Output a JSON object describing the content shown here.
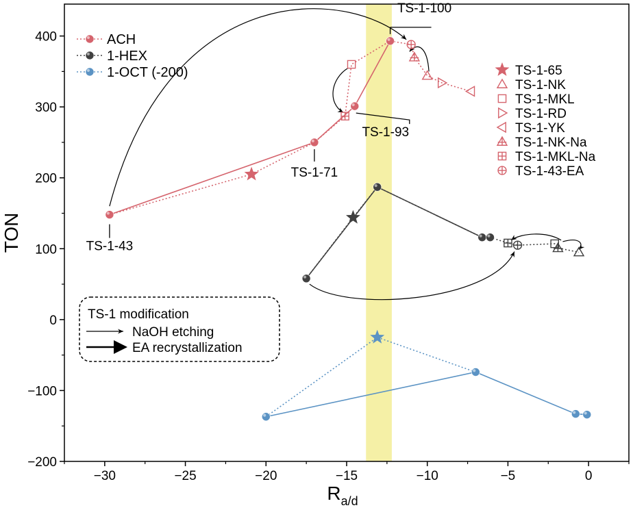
{
  "chart_data": {
    "type": "scatter",
    "xlabel": "R",
    "xlabel_sub": "a/d",
    "ylabel": "TON",
    "xlim": [
      -32.5,
      2.5
    ],
    "ylim": [
      -200,
      445
    ],
    "x_ticks": [
      -30,
      -25,
      -20,
      -15,
      -10,
      -5,
      0
    ],
    "y_ticks": [
      -200,
      -100,
      0,
      100,
      200,
      300,
      400
    ],
    "x_tick_labels": [
      "−30",
      "−25",
      "−20",
      "−15",
      "−10",
      "−5",
      "0"
    ],
    "y_tick_labels": [
      "−200",
      "−100",
      "0",
      "100",
      "200",
      "300",
      "400"
    ],
    "highlight_band": {
      "x0": -13.8,
      "x1": -12.2,
      "color": "#f5f0a6"
    },
    "colors": {
      "ACH": "#d5646d",
      "1-HEX": "#404040",
      "1-OCT": "#5b93c4"
    },
    "series": [
      {
        "name": "ACH",
        "color": "#d5646d",
        "solid_path": [
          [
            -29.7,
            148
          ],
          [
            -17.0,
            250
          ],
          [
            -14.5,
            301
          ],
          [
            -12.3,
            393
          ]
        ],
        "dotted_path": [
          [
            -29.7,
            148
          ],
          [
            -20.9,
            205
          ],
          [
            -17.0,
            250
          ],
          [
            -15.1,
            287
          ],
          [
            -14.7,
            360
          ],
          [
            -12.3,
            393
          ],
          [
            -11.0,
            388
          ],
          [
            -10.8,
            370
          ],
          [
            -10.0,
            344
          ],
          [
            -9.1,
            334
          ],
          [
            -7.3,
            322
          ]
        ],
        "points": [
          {
            "sample": "TS-1-43",
            "x": -29.7,
            "y": 148
          },
          {
            "sample": "TS-1-65",
            "x": -20.9,
            "y": 205
          },
          {
            "sample": "TS-1-71",
            "x": -17.0,
            "y": 250
          },
          {
            "sample": "TS-1-MKL-Na",
            "x": -15.1,
            "y": 287
          },
          {
            "sample": "TS-1-93",
            "x": -14.5,
            "y": 301
          },
          {
            "sample": "TS-1-MKL",
            "x": -14.7,
            "y": 360
          },
          {
            "sample": "TS-1-100",
            "x": -12.3,
            "y": 393
          },
          {
            "sample": "TS-1-43-EA",
            "x": -11.0,
            "y": 388
          },
          {
            "sample": "TS-1-NK-Na",
            "x": -10.8,
            "y": 370
          },
          {
            "sample": "TS-1-NK",
            "x": -10.0,
            "y": 344
          },
          {
            "sample": "TS-1-RD",
            "x": -9.1,
            "y": 334
          },
          {
            "sample": "TS-1-YK",
            "x": -7.3,
            "y": 322
          }
        ]
      },
      {
        "name": "1-HEX",
        "color": "#404040",
        "solid_path": [
          [
            -17.5,
            58
          ],
          [
            -13.1,
            187
          ],
          [
            -6.6,
            116
          ],
          [
            -6.1,
            116
          ]
        ],
        "dotted_path": [
          [
            -17.5,
            58
          ],
          [
            -14.6,
            144
          ],
          [
            -13.1,
            187
          ],
          [
            -6.6,
            116
          ],
          [
            -6.1,
            116
          ],
          [
            -5.0,
            108
          ],
          [
            -4.4,
            105
          ],
          [
            -2.1,
            107
          ],
          [
            -1.9,
            101
          ],
          [
            -0.6,
            95
          ]
        ],
        "points": [
          {
            "sample": "TS-1-43",
            "x": -17.5,
            "y": 58
          },
          {
            "sample": "TS-1-65",
            "x": -14.6,
            "y": 144
          },
          {
            "sample": "TS-1-100",
            "x": -13.1,
            "y": 187
          },
          {
            "sample": "TS-1-71",
            "x": -6.6,
            "y": 116
          },
          {
            "sample": "TS-1-93",
            "x": -6.1,
            "y": 116
          },
          {
            "sample": "TS-1-MKL-Na",
            "x": -5.0,
            "y": 108
          },
          {
            "sample": "TS-1-43-EA",
            "x": -4.4,
            "y": 105
          },
          {
            "sample": "TS-1-MKL",
            "x": -2.1,
            "y": 107
          },
          {
            "sample": "TS-1-NK-Na",
            "x": -1.9,
            "y": 101
          },
          {
            "sample": "TS-1-NK",
            "x": -0.6,
            "y": 95
          }
        ]
      },
      {
        "name": "1-OCT (-200)",
        "color": "#5b93c4",
        "solid_path": [
          [
            -20.0,
            -137
          ],
          [
            -7.0,
            -74
          ],
          [
            -0.8,
            -133
          ],
          [
            -0.1,
            -134
          ]
        ],
        "dotted_path": [
          [
            -20.0,
            -137
          ],
          [
            -13.1,
            -25
          ],
          [
            -7.0,
            -74
          ]
        ],
        "points": [
          {
            "sample": "TS-1-43",
            "x": -20.0,
            "y": -137
          },
          {
            "sample": "TS-1-65",
            "x": -13.1,
            "y": -25
          },
          {
            "sample": "TS-1-71",
            "x": -7.0,
            "y": -74
          },
          {
            "sample": "TS-1-93",
            "x": -0.8,
            "y": -133
          },
          {
            "sample": "TS-1-100",
            "x": -0.1,
            "y": -134
          }
        ]
      }
    ],
    "point_annotations": [
      {
        "text": "TS-1-43",
        "x": -29.7,
        "y": 148
      },
      {
        "text": "TS-1-71",
        "x": -17.0,
        "y": 250
      },
      {
        "text": "TS-1-93",
        "x": -14.5,
        "y": 301
      },
      {
        "text": "TS-1-100",
        "x": -12.3,
        "y": 393
      }
    ],
    "legend_series": [
      "ACH",
      "1-HEX",
      "1-OCT (-200)"
    ],
    "legend_series_placement": "top-left",
    "legend_markers_placement": "top-right",
    "legend_markers": [
      {
        "label": "TS-1-65",
        "marker": "star-icon"
      },
      {
        "label": "TS-1-NK",
        "marker": "triangle-up-icon"
      },
      {
        "label": "TS-1-MKL",
        "marker": "square-icon"
      },
      {
        "label": "TS-1-RD",
        "marker": "triangle-right-icon"
      },
      {
        "label": "TS-1-YK",
        "marker": "triangle-left-icon"
      },
      {
        "label": "TS-1-NK-Na",
        "marker": "triangle-cross-icon"
      },
      {
        "label": "TS-1-MKL-Na",
        "marker": "square-cross-icon"
      },
      {
        "label": "TS-1-43-EA",
        "marker": "circle-cross-icon"
      }
    ],
    "modification_box": {
      "title": "TS-1 modification",
      "items": [
        {
          "label": "NaOH etching",
          "arrow": "thin-arrow-icon"
        },
        {
          "label": "EA recrystallization",
          "arrow": "filled-arrow-icon"
        }
      ]
    }
  }
}
